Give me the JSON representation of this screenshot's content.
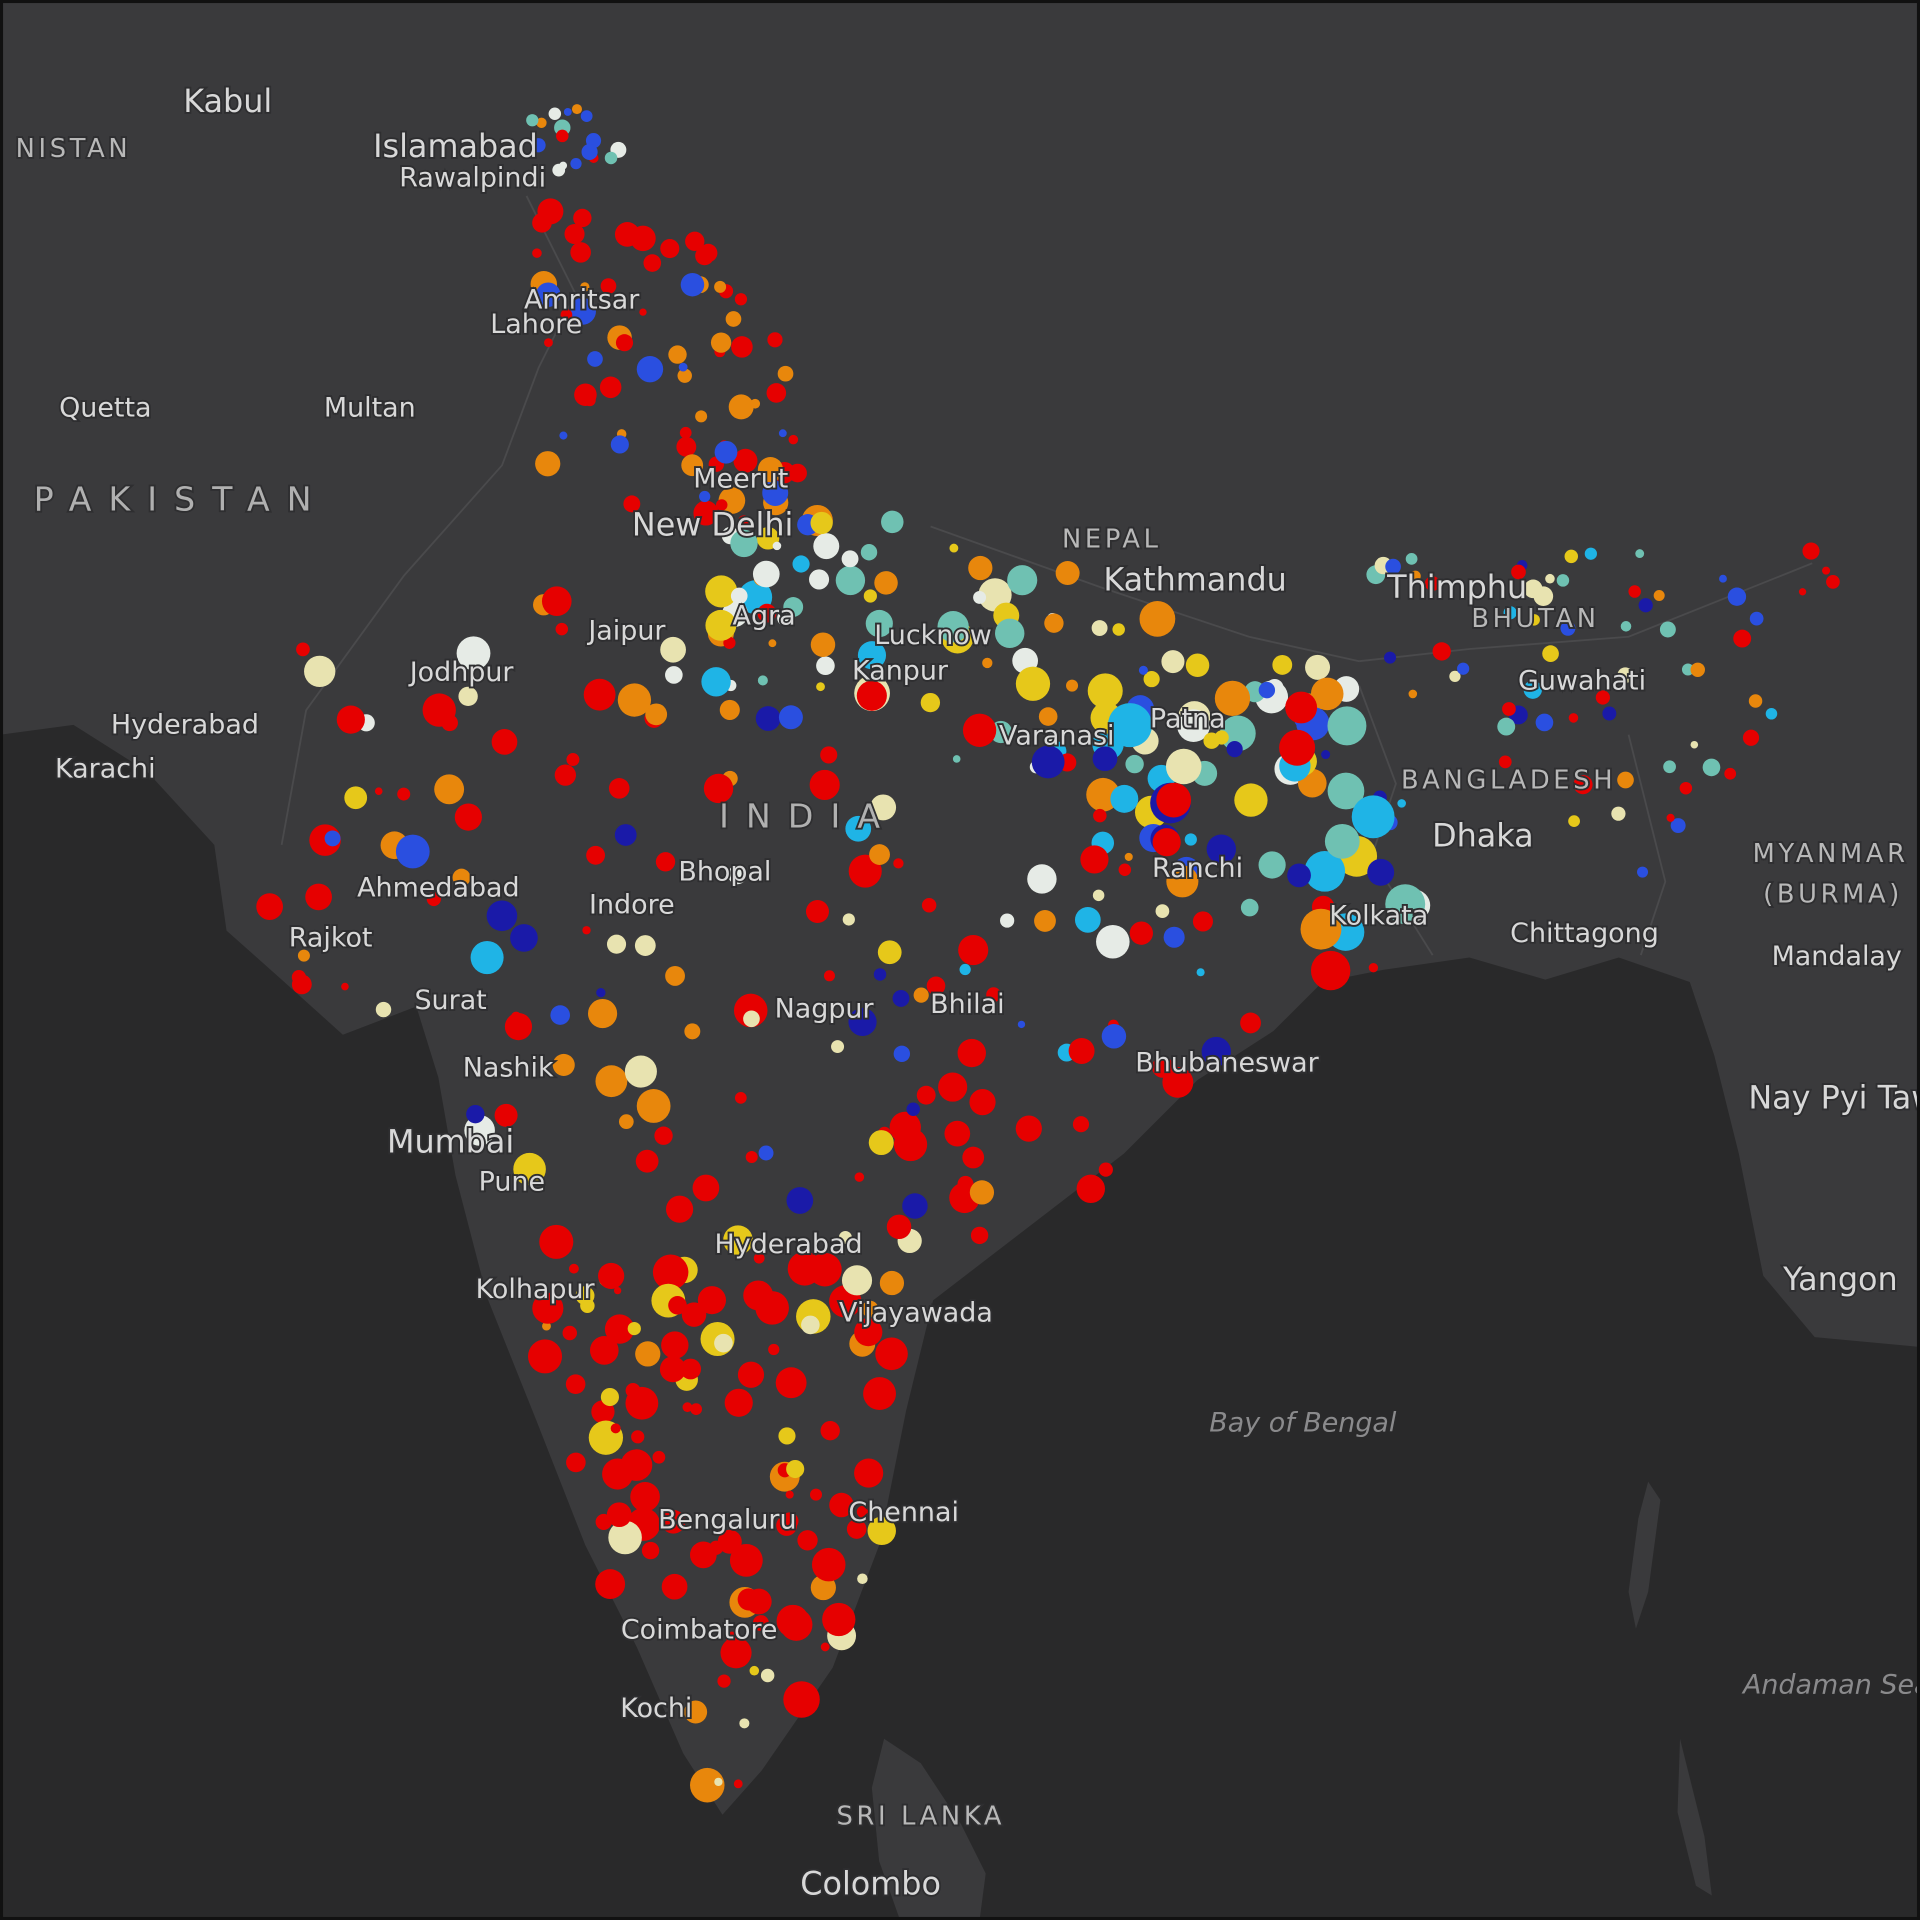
{
  "labels": [
    "Kabul",
    "NISTAN",
    "Islamabad",
    "Rawalpindi",
    "Amritsar",
    "Lahore",
    "Quetta",
    "Multan",
    "PAKISTAN",
    "Meerut",
    "New Delhi",
    "NEPAL",
    "Kathmandu",
    "Thimphu",
    "BHUTAN",
    "Agra",
    "Jaipur",
    "Lucknow",
    "Kanpur",
    "Jodhpur",
    "Guwahati",
    "Patna",
    "Hyderabad",
    "Varanasi",
    "Karachi",
    "BANGLADESH",
    "INDIA",
    "Dhaka",
    "MYANMAR",
    "(BURMA)",
    "Ahmedabad",
    "Bhopal",
    "Ranchi",
    "Indore",
    "Kolkata",
    "Chittagong",
    "Rajkot",
    "Mandalay",
    "Surat",
    "Nagpur",
    "Bhilai",
    "Nashik",
    "Bhubaneswar",
    "Nay Pyi Taw",
    "Mumbai",
    "Pune",
    "Hyderabad",
    "Yangon",
    "Kolhapur",
    "Vijayawada",
    "Bay of Bengal",
    "Chennai",
    "Bengaluru",
    "Coimbatore",
    "Andaman Sea",
    "Kochi",
    "SRI LANKA",
    "Colombo"
  ]
}
